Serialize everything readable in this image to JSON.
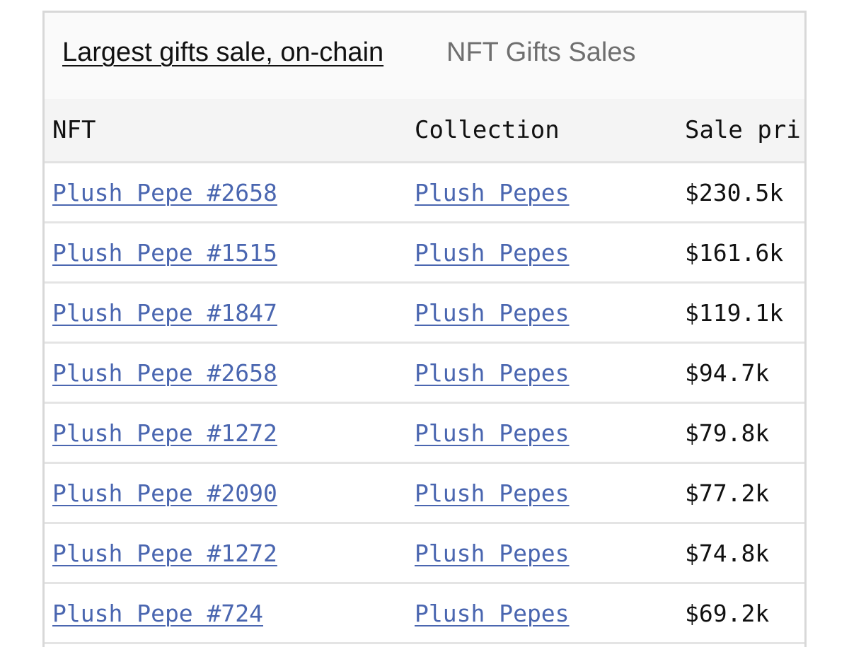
{
  "header": {
    "title": "Largest gifts sale, on-chain",
    "subtitle": "NFT Gifts Sales"
  },
  "table": {
    "columns": [
      "NFT",
      "Collection",
      "Sale pri"
    ],
    "rows": [
      {
        "nft": "Plush Pepe #2658",
        "collection": "Plush Pepes",
        "price": "$230.5k"
      },
      {
        "nft": "Plush Pepe #1515",
        "collection": "Plush Pepes",
        "price": "$161.6k"
      },
      {
        "nft": "Plush Pepe #1847",
        "collection": "Plush Pepes",
        "price": "$119.1k"
      },
      {
        "nft": "Plush Pepe #2658",
        "collection": "Plush Pepes",
        "price": "$94.7k"
      },
      {
        "nft": "Plush Pepe #1272",
        "collection": "Plush Pepes",
        "price": "$79.8k"
      },
      {
        "nft": "Plush Pepe #2090",
        "collection": "Plush Pepes",
        "price": "$77.2k"
      },
      {
        "nft": "Plush Pepe #1272",
        "collection": "Plush Pepes",
        "price": "$74.8k"
      },
      {
        "nft": "Plush Pepe #724",
        "collection": "Plush Pepes",
        "price": "$69.2k"
      }
    ]
  },
  "colors": {
    "link": "#4a66b0",
    "header_bg": "#f4f4f4",
    "border": "#d8d8d8"
  }
}
